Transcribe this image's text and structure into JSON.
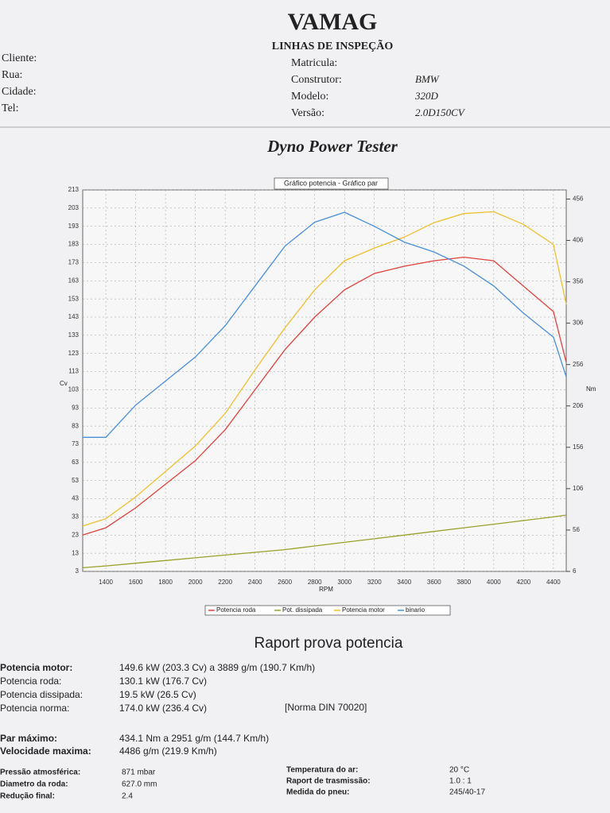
{
  "header": {
    "title": "VAMAG",
    "subtitle": "LINHAS DE INSPEÇÃO",
    "left_fields": [
      "Cliente:",
      "Rua:",
      "Cidade:",
      "Tel:"
    ],
    "right_fields": [
      [
        "Matricula:",
        ""
      ],
      [
        "Construtor:",
        "BMW"
      ],
      [
        "Modelo:",
        "320D"
      ],
      [
        "Versão:",
        "2.0D150CV"
      ]
    ]
  },
  "heading": "Dyno Power Tester",
  "chart_data": {
    "type": "line",
    "title": "Gráfico potencia - Gráfico par",
    "ylabel": "Cv",
    "y2label": "Nm",
    "xlabel": "RPM",
    "x": [
      1245,
      1400,
      1600,
      1800,
      2000,
      2200,
      2400,
      2600,
      2800,
      3000,
      3200,
      3400,
      3600,
      3800,
      4000,
      4200,
      4400,
      4486
    ],
    "xlim": [
      1245,
      4486
    ],
    "xticks": [
      1400,
      1600,
      1800,
      2000,
      2200,
      2400,
      2600,
      2800,
      3000,
      3200,
      3400,
      3600,
      3800,
      4000,
      4200,
      4400
    ],
    "ylim": [
      3,
      213
    ],
    "yticks": [
      3,
      13,
      23,
      33,
      43,
      53,
      63,
      73,
      83,
      93,
      103,
      113,
      123,
      133,
      143,
      153,
      163,
      173,
      183,
      193,
      203,
      213
    ],
    "y2lim": [
      6,
      467
    ],
    "y2ticks": [
      6,
      56,
      106,
      156,
      206,
      256,
      306,
      356,
      406,
      456
    ],
    "grid": true,
    "series": [
      {
        "name": "Potencia roda",
        "color": "#e0433c",
        "values": [
          23,
          27,
          38,
          51,
          64,
          81,
          103,
          125,
          143,
          158,
          167,
          171,
          174,
          176,
          174,
          160,
          146,
          118
        ]
      },
      {
        "name": "Pot. dissipada",
        "color": "#9aa02a",
        "values": [
          5,
          6,
          7.5,
          9,
          10.5,
          12,
          13.5,
          15,
          17,
          19,
          21,
          23,
          25,
          27,
          29,
          31,
          33,
          34
        ]
      },
      {
        "name": "Potencia motor",
        "color": "#f0c030",
        "values": [
          28,
          32,
          44,
          58,
          72,
          90,
          114,
          137,
          158,
          174,
          181,
          187,
          195,
          200,
          201,
          194,
          183,
          150
        ]
      },
      {
        "name": "binario",
        "color": "#4a90d9",
        "axis": "y2",
        "values": [
          168,
          168,
          207,
          236,
          265,
          303,
          351,
          399,
          428,
          440,
          423,
          404,
          392,
          375,
          351,
          318,
          289,
          241
        ]
      }
    ]
  },
  "report": {
    "title": "Raport prova potencia",
    "main": [
      [
        "Potencia motor:",
        "149.6 kW (203.3 Cv) a 3889 g/m (190.7 Km/h)"
      ],
      [
        "Potencia roda:",
        "130.1 kW (176.7 Cv)"
      ],
      [
        "Potencia dissipada:",
        "19.5 kW (26.5 Cv)"
      ],
      [
        "Potencia norma:",
        "174.0 kW (236.4 Cv)"
      ]
    ],
    "norma_note": "[Norma DIN 70020]",
    "torque": [
      [
        "Par máximo:",
        "434.1 Nm a 2951 g/m (144.7 Km/h)"
      ],
      [
        "Velocidade maxima:",
        "4486 g/m (219.9 Km/h)"
      ]
    ],
    "conditions_left": [
      [
        "Pressão atmosférica:",
        "871 mbar"
      ],
      [
        "Diametro da roda:",
        "627.0 mm"
      ],
      [
        "Redução final:",
        "2.4"
      ]
    ],
    "conditions_right": [
      [
        "Temperatura do ar:",
        "20 °C"
      ],
      [
        "Raport de trasmissão:",
        "1.0 : 1"
      ],
      [
        "Medida do pneu:",
        "245/40-17"
      ]
    ]
  }
}
